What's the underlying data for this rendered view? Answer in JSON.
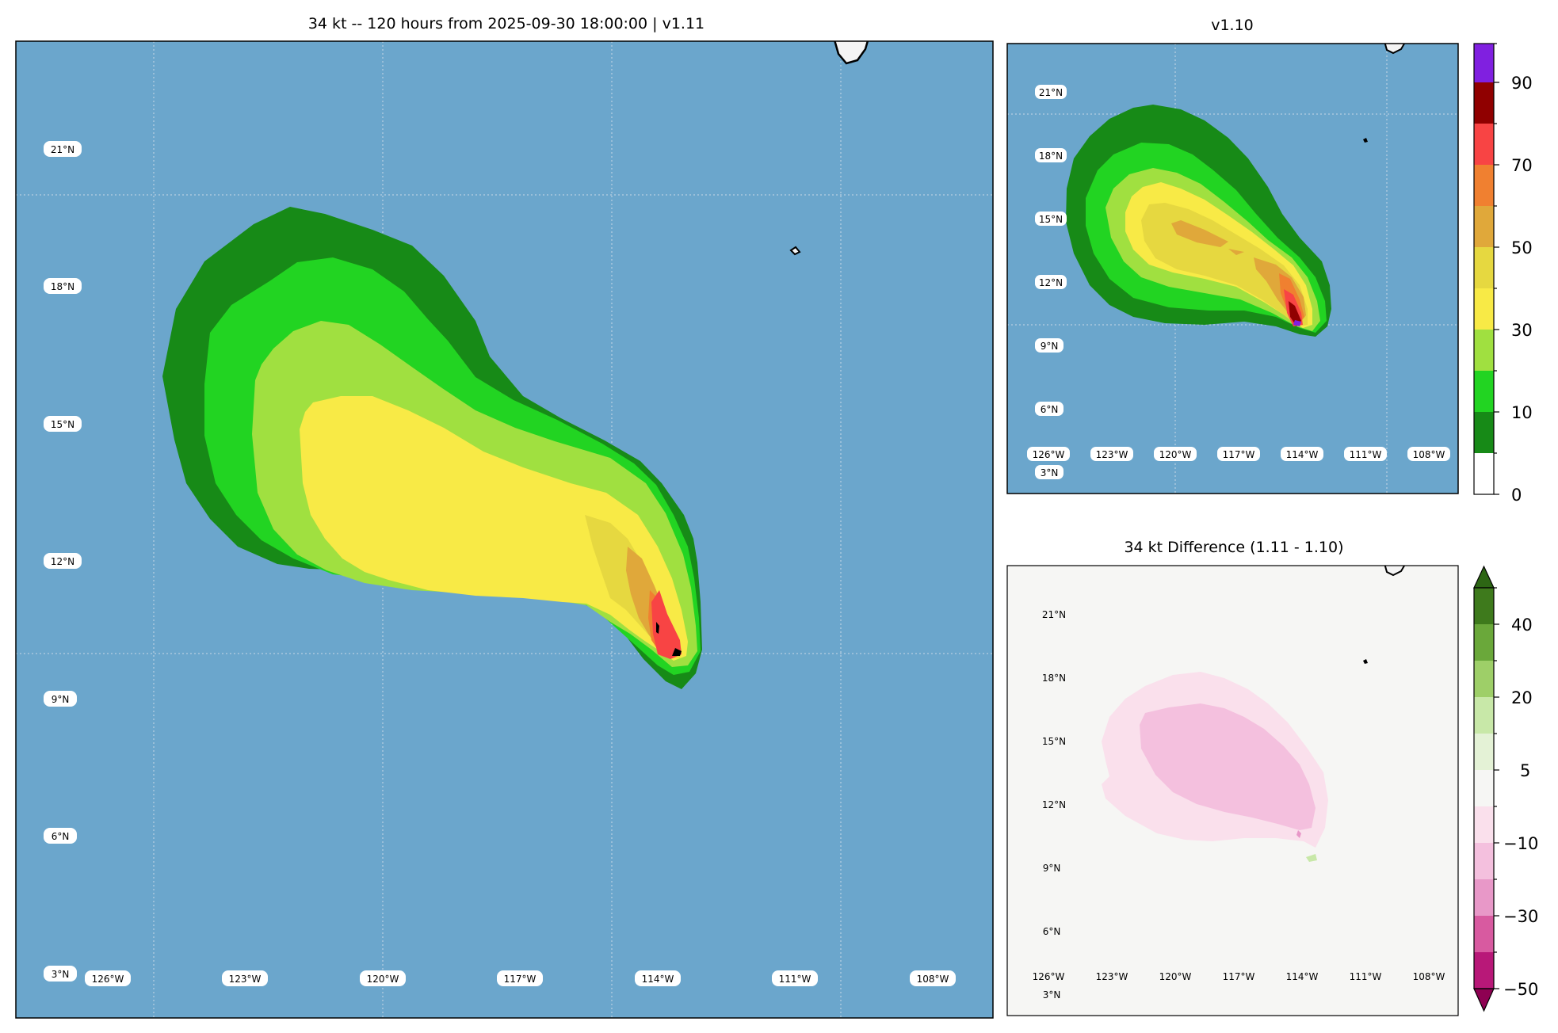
{
  "main_map": {
    "title": "34 kt -- 120 hours from 2025-09-30 18:00:00  |  v1.11",
    "lat_labels": [
      "21°N",
      "18°N",
      "15°N",
      "12°N",
      "9°N",
      "6°N",
      "3°N"
    ],
    "lon_labels": [
      "126°W",
      "123°W",
      "120°W",
      "117°W",
      "114°W",
      "111°W",
      "108°W"
    ]
  },
  "v110_map": {
    "title": "v1.10",
    "lat_labels": [
      "21°N",
      "18°N",
      "15°N",
      "12°N",
      "9°N",
      "6°N",
      "3°N"
    ],
    "lon_labels": [
      "126°W",
      "123°W",
      "120°W",
      "117°W",
      "114°W",
      "111°W",
      "108°W"
    ]
  },
  "diff_map": {
    "title": "34 kt Difference (1.11 - 1.10)",
    "lat_labels": [
      "21°N",
      "18°N",
      "15°N",
      "12°N",
      "9°N",
      "6°N",
      "3°N"
    ],
    "lon_labels": [
      "126°W",
      "123°W",
      "120°W",
      "117°W",
      "114°W",
      "111°W",
      "108°W"
    ]
  },
  "probability_colorbar": {
    "tick_labels": [
      "0",
      "10",
      "30",
      "50",
      "70",
      "90"
    ],
    "level_colors": [
      "#ffffff",
      "#178a17",
      "#22d422",
      "#a0e040",
      "#f8ea46",
      "#e6d840",
      "#e0a83a",
      "#f08030",
      "#f84444",
      "#900000",
      "#8020e0"
    ]
  },
  "difference_colorbar": {
    "tick_labels": [
      "40",
      "20",
      "5",
      "−10",
      "−30",
      "−50"
    ],
    "level_colors": [
      "#3e7a1c",
      "#6aa83a",
      "#9ecf68",
      "#c8e8a8",
      "#e4f2d6",
      "#f6f6f4",
      "#fae0ec",
      "#f4c0de",
      "#e898c8",
      "#d85aa0",
      "#b81878",
      "#8e0152"
    ]
  },
  "colors": {
    "ocean": "#6ba6cc",
    "diff_background": "#f6f6f4",
    "land": "#f4f4f4"
  }
}
